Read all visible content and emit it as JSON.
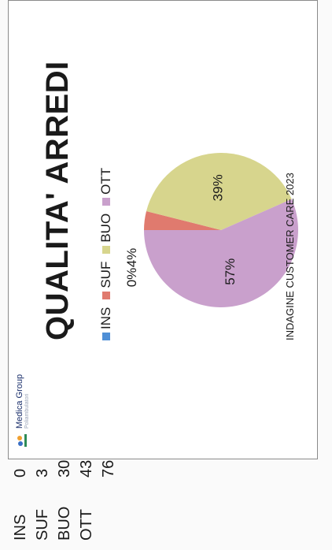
{
  "logo": {
    "name": "Medica Group",
    "sub": "Poliambulatori"
  },
  "chart_data": {
    "type": "pie",
    "title": "QUALITA' ARREDI",
    "categories": [
      "INS",
      "SUF",
      "BUO",
      "OTT"
    ],
    "values": [
      0,
      3,
      30,
      43
    ],
    "slice_labels": [
      "0%",
      "4%",
      "39%",
      "57%"
    ],
    "colors": [
      "#4f8fd6",
      "#e07a6e",
      "#d7d58d",
      "#c9a0cc"
    ],
    "legend": "top"
  },
  "footer": "INDAGINE CUSTOMER CARE 2023",
  "table": {
    "rows": [
      {
        "cat": "INS",
        "val": "0"
      },
      {
        "cat": "SUF",
        "val": "3"
      },
      {
        "cat": "BUO",
        "val": "30"
      },
      {
        "cat": "OTT",
        "val": "43"
      },
      {
        "cat": "",
        "val": "76"
      }
    ]
  }
}
